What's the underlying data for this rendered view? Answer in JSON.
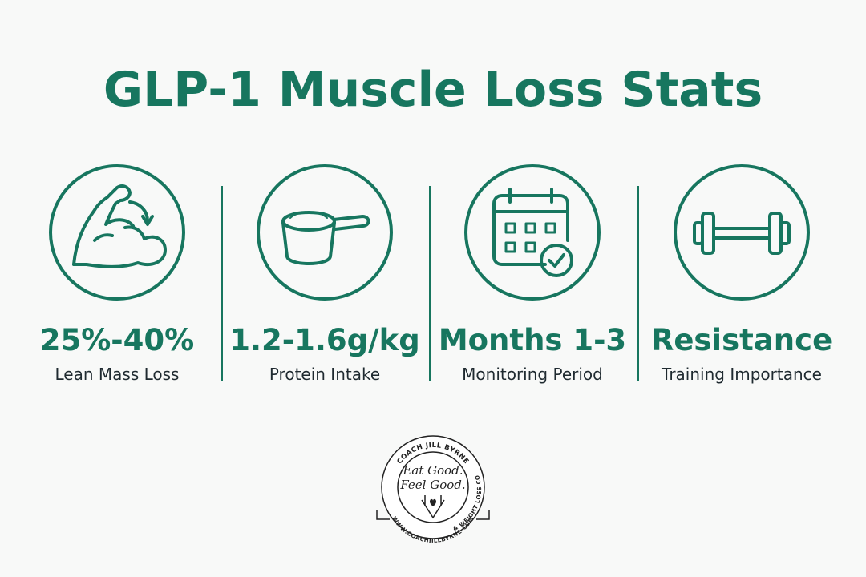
{
  "title": "GLP-1 Muscle Loss Stats",
  "stats": [
    {
      "value": "25%-40%",
      "label": "Lean Mass Loss"
    },
    {
      "value": "1.2-1.6g/kg",
      "label": "Protein Intake"
    },
    {
      "value": "Months 1-3",
      "label": "Monitoring Period"
    },
    {
      "value": "Resistance",
      "label": "Training Importance"
    }
  ],
  "logo": {
    "name": "COACH JILL BYRNE",
    "tagline_1": "Eat Good.",
    "tagline_2": "Feel Good.",
    "ring": "HEALTH & WEIGHT LOSS COACHING",
    "url": "WWW.COACHJILLBYRNE.COM"
  }
}
